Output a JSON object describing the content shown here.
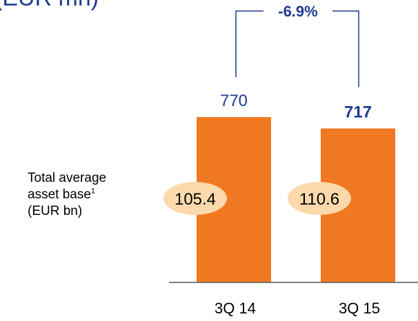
{
  "title_fragment": "(EUR mn)",
  "side_label": {
    "line1": "Total average",
    "line2": "asset base",
    "footnote": "1",
    "line3": "(EUR bn)"
  },
  "colors": {
    "bar": "#f07820",
    "ellipse": "#fbd9ab",
    "text_blue": "#1f3b8f",
    "bracket": "#1f3b8f",
    "axis": "#555555"
  },
  "chart_data": {
    "type": "bar",
    "categories": [
      "3Q 14",
      "3Q 15"
    ],
    "values": [
      770,
      717
    ],
    "value_labels": [
      "770",
      "717"
    ],
    "highlight_index": 1,
    "secondary_values": [
      105.4,
      110.6
    ],
    "secondary_labels": [
      "105.4",
      "110.6"
    ],
    "change_label": "-6.9%",
    "ylim": [
      0,
      1000
    ],
    "grid": false,
    "legend": "none"
  }
}
